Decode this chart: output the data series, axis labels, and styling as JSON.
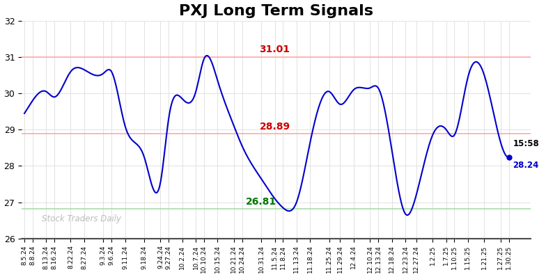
{
  "title": "PXJ Long Term Signals",
  "title_fontsize": 16,
  "background_color": "#ffffff",
  "line_color": "#0000cc",
  "line_width": 1.5,
  "upper_band": 31.01,
  "lower_band": 28.89,
  "green_band": 26.81,
  "upper_band_color": "#ffaaaa",
  "lower_band_color": "#ffaaaa",
  "green_band_color": "#aaddaa",
  "annotation_upper": "31.01",
  "annotation_lower": "28.89",
  "annotation_green": "26.81",
  "annotation_upper_color": "#cc0000",
  "annotation_lower_color": "#cc0000",
  "annotation_green_color": "#007700",
  "last_value": 28.24,
  "watermark": "Stock Traders Daily",
  "watermark_color": "#bbbbbb",
  "ylim": [
    26.0,
    32.0
  ],
  "yticks": [
    26,
    27,
    28,
    29,
    30,
    31,
    32
  ],
  "xtick_labels": [
    "8.5.24",
    "8.8.24",
    "8.13.24",
    "8.16.24",
    "8.22.24",
    "8.27.24",
    "9.3.24",
    "9.6.24",
    "9.11.24",
    "9.18.24",
    "9.24.24",
    "9.27.24",
    "10.2.24",
    "10.7.24",
    "10.10.24",
    "10.15.24",
    "10.21.24",
    "10.24.24",
    "10.31.24",
    "11.5.24",
    "11.8.24",
    "11.13.24",
    "11.18.24",
    "11.25.24",
    "11.29.24",
    "12.4.24",
    "12.10.24",
    "12.13.24",
    "12.18.24",
    "12.23.24",
    "12.27.24",
    "1.2.25",
    "1.7.25",
    "1.10.25",
    "1.15.25",
    "1.21.25",
    "1.27.25",
    "1.30.25"
  ],
  "price_at_ticks": [
    29.45,
    29.8,
    30.05,
    29.9,
    30.6,
    30.65,
    30.55,
    30.6,
    29.1,
    28.25,
    27.55,
    29.3,
    29.85,
    30.05,
    30.95,
    30.35,
    29.1,
    28.55,
    27.65,
    27.1,
    26.85,
    27.0,
    28.65,
    30.05,
    29.7,
    30.1,
    30.15,
    30.15,
    28.45,
    26.68,
    27.2,
    28.85,
    29.0,
    28.85,
    30.45,
    30.5,
    28.65,
    28.24
  ]
}
